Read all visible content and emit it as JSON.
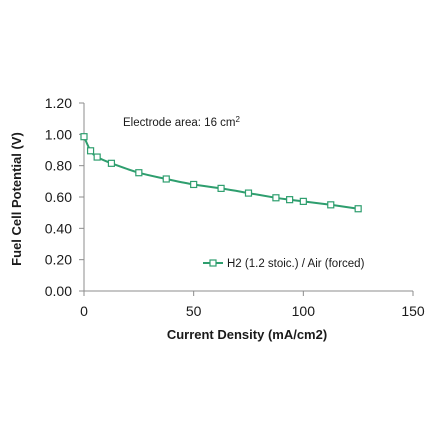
{
  "chart_data": {
    "type": "line",
    "xlabel": "Current Density (mA/cm2)",
    "ylabel": "Fuel Cell Potential (V)",
    "xlim": [
      0,
      150
    ],
    "ylim": [
      0,
      1.2
    ],
    "x_ticks": [
      "0",
      "50",
      "100",
      "150"
    ],
    "y_ticks": [
      "0.00",
      "0.20",
      "0.40",
      "0.60",
      "0.80",
      "1.00",
      "1.20"
    ],
    "grid": false,
    "legend_position": "lower-right",
    "annotation": {
      "text": "Electrode area: 16 cm",
      "superscript": "2"
    },
    "series": [
      {
        "name": "H2 (1.2 stoic.) / Air (forced)",
        "color": "#2e9e6e",
        "marker": "open-square",
        "x": [
          0,
          3,
          6,
          12.5,
          25,
          37.5,
          50,
          62.5,
          75,
          87.5,
          93.75,
          100,
          112.5,
          125
        ],
        "y": [
          0.985,
          0.895,
          0.855,
          0.815,
          0.755,
          0.715,
          0.68,
          0.655,
          0.625,
          0.595,
          0.583,
          0.572,
          0.55,
          0.525
        ]
      }
    ]
  }
}
